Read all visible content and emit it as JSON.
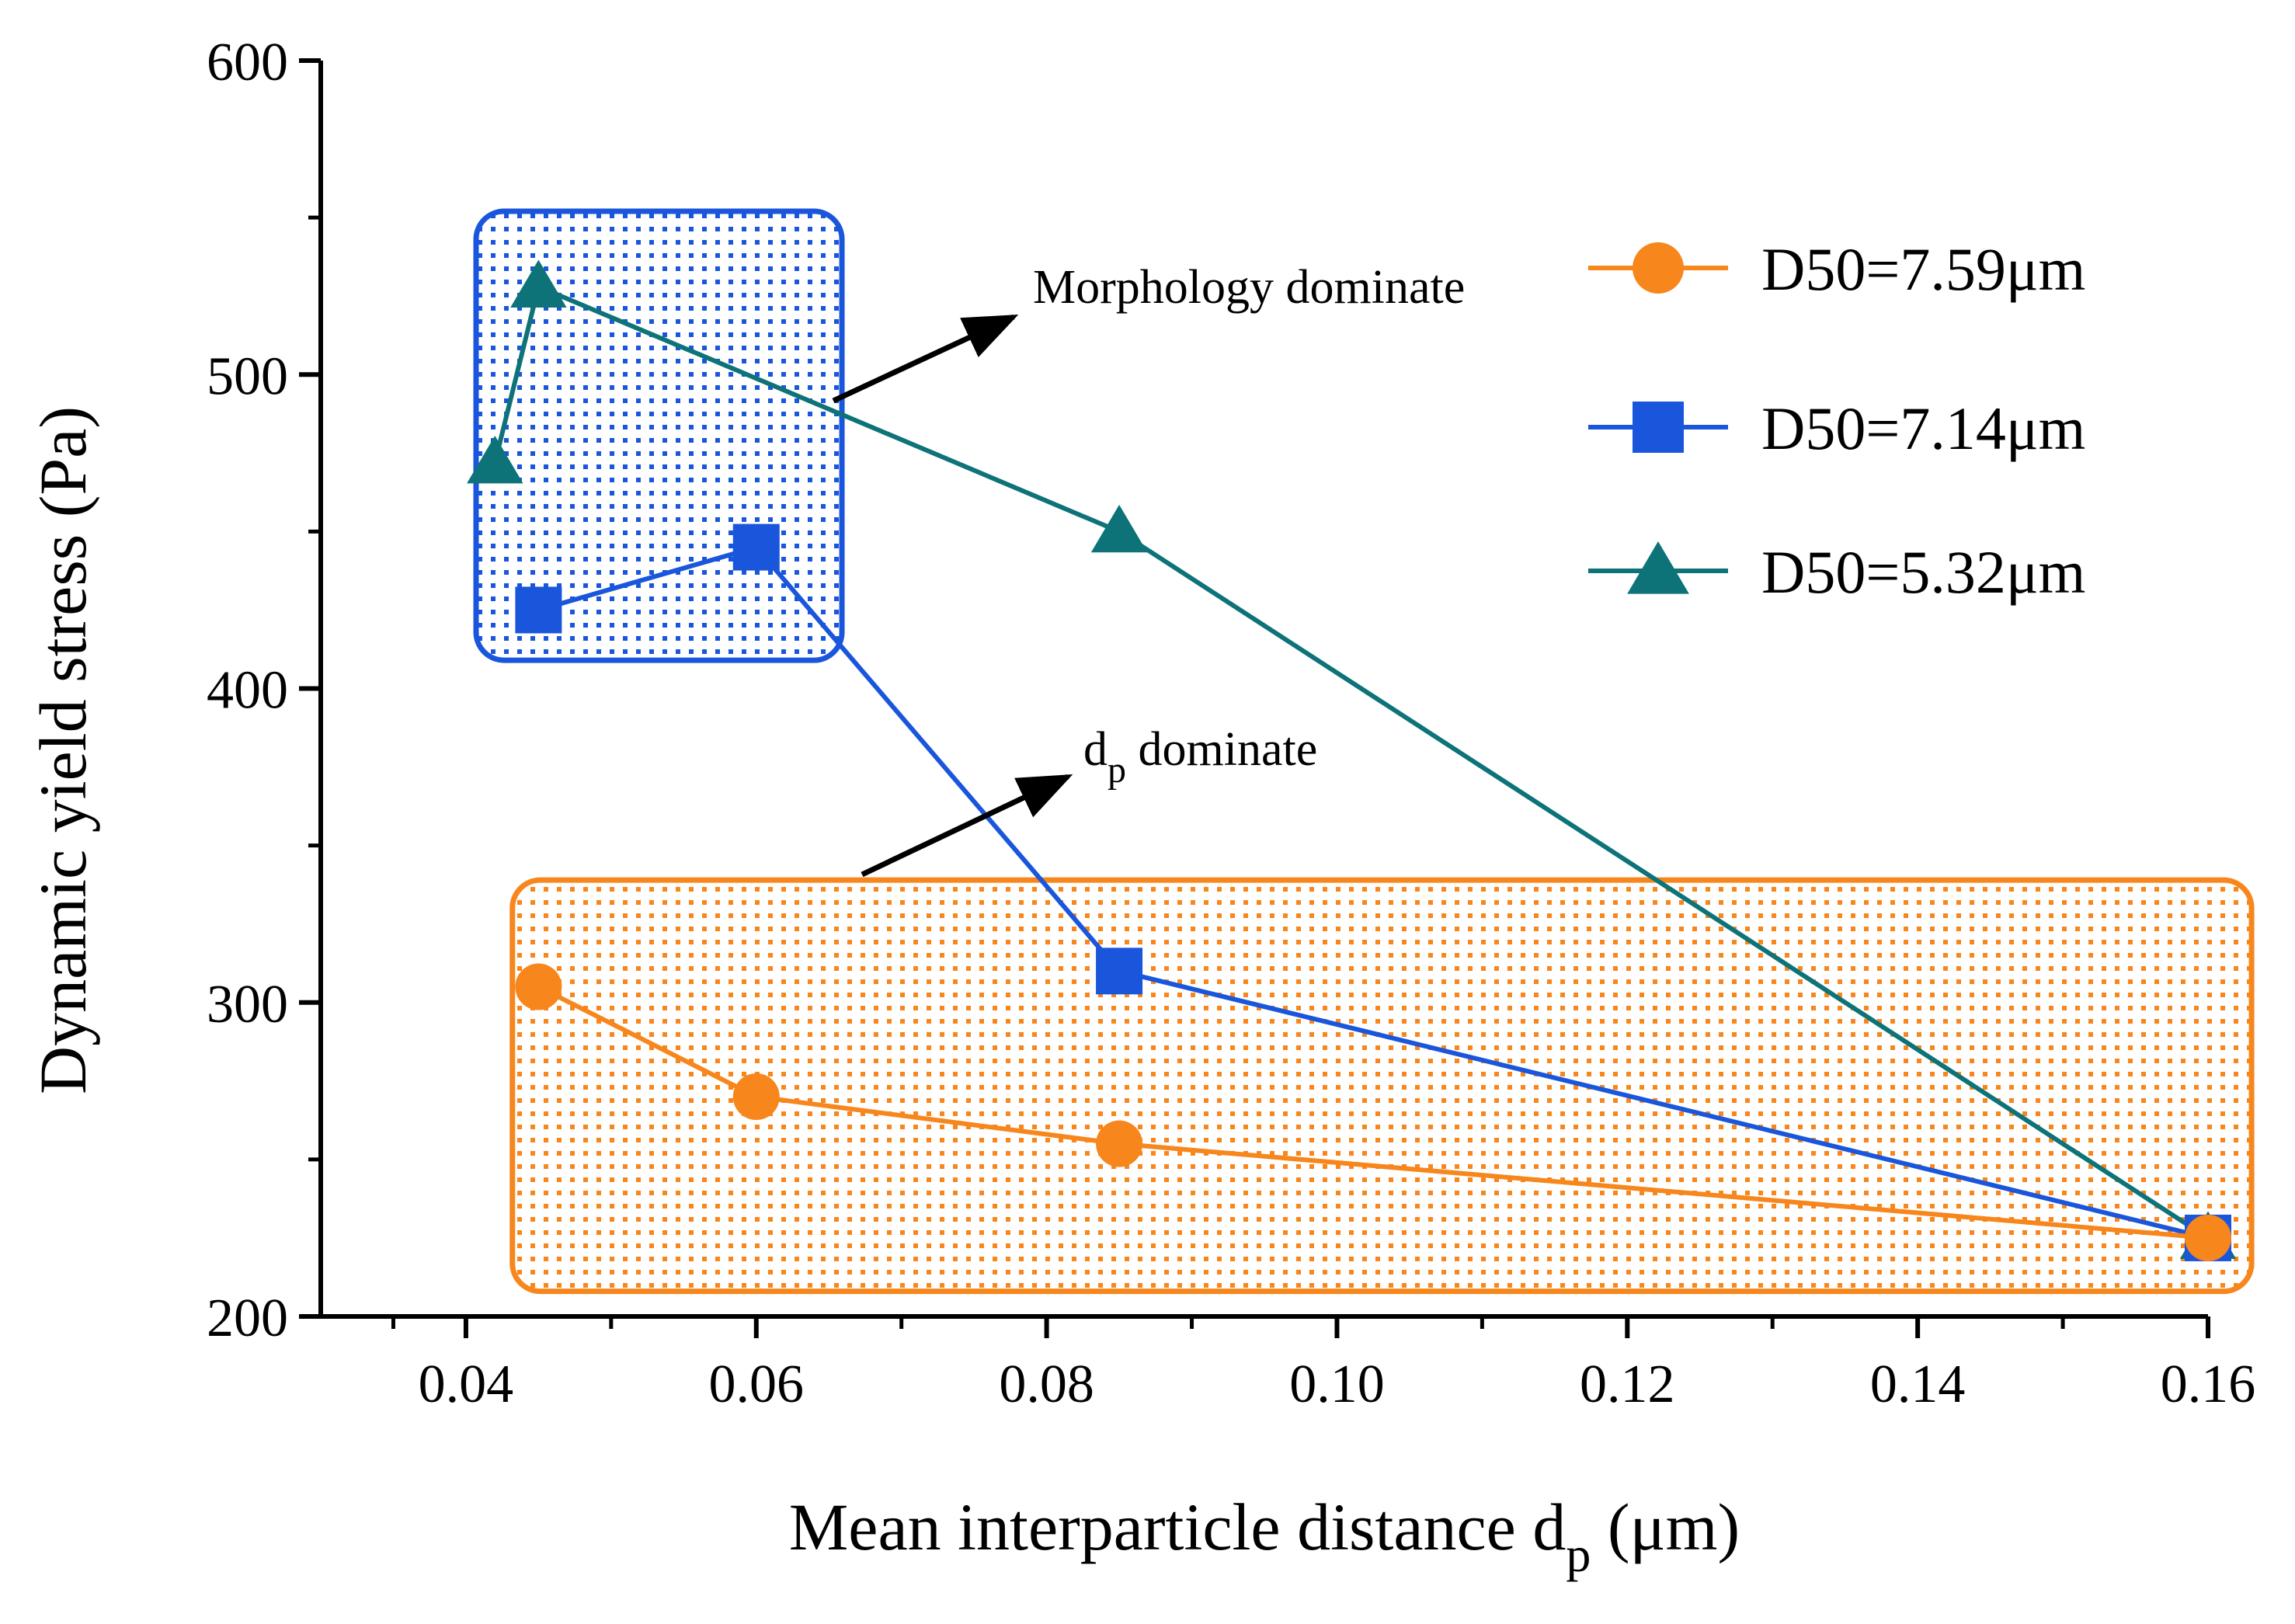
{
  "chart_data": {
    "type": "line",
    "xlabel": {
      "main": "Mean interparticle distance d",
      "sub": "p",
      "unit": " (μm)"
    },
    "ylabel": "Dynamic yield stress (Pa)",
    "xlim": [
      0.03,
      0.16
    ],
    "ylim": [
      200,
      600
    ],
    "xticks": [
      "0.04",
      "0.06",
      "0.08",
      "0.10",
      "0.12",
      "0.14",
      "0.16"
    ],
    "xtick_values": [
      0.04,
      0.06,
      0.08,
      0.1,
      0.12,
      0.14,
      0.16
    ],
    "yticks": [
      "200",
      "300",
      "400",
      "500",
      "600"
    ],
    "ytick_values": [
      200,
      300,
      400,
      500,
      600
    ],
    "series": [
      {
        "name": "D50=7.59μm",
        "color": "#f7861c",
        "marker": "circle",
        "x": [
          0.045,
          0.06,
          0.085,
          0.16
        ],
        "y": [
          305,
          270,
          255,
          225
        ]
      },
      {
        "name": "D50=7.14μm",
        "color": "#1a56db",
        "marker": "square",
        "x": [
          0.045,
          0.06,
          0.085,
          0.16
        ],
        "y": [
          425,
          445,
          310,
          225
        ]
      },
      {
        "name": "D50=5.32μm",
        "color": "#0d7378",
        "marker": "triangle",
        "x": [
          0.042,
          0.045,
          0.085,
          0.16
        ],
        "y": [
          472,
          528,
          450,
          225
        ]
      }
    ],
    "regions": [
      {
        "name": "morphology-region",
        "color": "#1a56db",
        "x": [
          0.0407,
          0.0659
        ],
        "y": [
          409,
          552
        ]
      },
      {
        "name": "dp-region",
        "color": "#f7861c",
        "x": [
          0.0432,
          0.163
        ],
        "y": [
          208,
          339
        ]
      }
    ],
    "annotations": [
      {
        "text": "Morphology dominate",
        "sub": ""
      },
      {
        "text": " dominate",
        "main": "d",
        "sub": "p"
      }
    ],
    "legend_position": "top-right"
  }
}
